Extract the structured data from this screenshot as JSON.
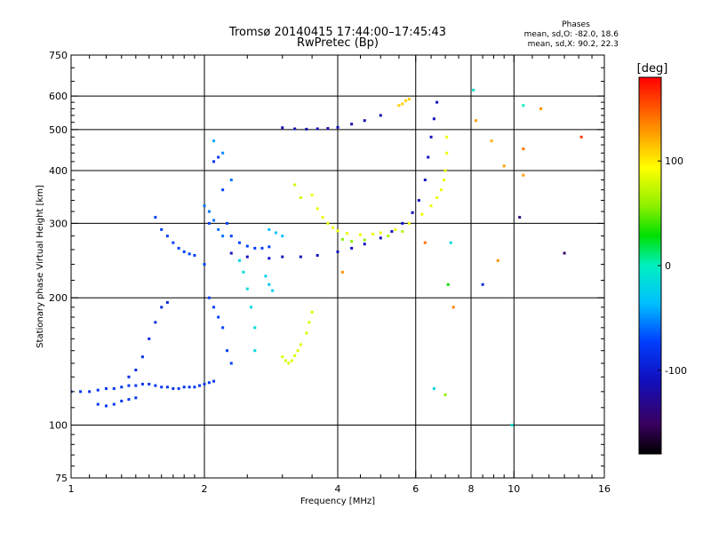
{
  "chart_data": {
    "type": "scatter",
    "title": "Tromsø 20140415 17:44:00–17:45:43",
    "subtitle": "RwPretec (Bp)",
    "xlabel": "Frequency [MHz]",
    "ylabel": "Stationary phase Virtual Height [km]",
    "x_scale": "log",
    "y_scale": "log",
    "xlim": [
      1,
      16
    ],
    "ylim": [
      75,
      750
    ],
    "x_ticks": [
      1,
      2,
      4,
      6,
      8,
      10,
      16
    ],
    "x_tick_labels": [
      "1",
      "2",
      "4",
      "6",
      "8",
      "10",
      "16"
    ],
    "x_minor_ticks": [
      1.1,
      1.2,
      1.3,
      1.4,
      1.5,
      1.6,
      1.7,
      1.8,
      1.9,
      2.5,
      3,
      3.5,
      4.5,
      5,
      5.5,
      6.5,
      7,
      7.5,
      8.5,
      9,
      9.5,
      11,
      12,
      13,
      14,
      15
    ],
    "y_ticks": [
      75,
      100,
      200,
      300,
      400,
      500,
      600,
      750
    ],
    "y_tick_labels": [
      "75",
      "100",
      "200",
      "300",
      "400",
      "500",
      "600",
      "750"
    ],
    "y_minor_ticks": [
      80,
      85,
      90,
      95,
      110,
      120,
      130,
      140,
      150,
      160,
      170,
      180,
      190,
      220,
      240,
      260,
      280,
      320,
      340,
      360,
      380,
      420,
      440,
      460,
      480,
      520,
      540,
      560,
      580,
      650,
      700
    ],
    "grid_x": [
      2,
      4,
      6,
      8,
      10
    ],
    "grid_y": [
      100,
      200,
      300,
      400,
      500,
      600
    ],
    "legend": {
      "title": "Phases",
      "lines": [
        "mean, sd,O: -82.0, 18.6",
        "mean, sd,X:  90.2, 22.3"
      ],
      "placement": "top-right"
    },
    "colorbar": {
      "label": "[deg]",
      "range": [
        -180,
        180
      ],
      "ticks": [
        100,
        0,
        -100
      ],
      "tick_labels": [
        "100",
        "0",
        "-100"
      ]
    },
    "series": [
      {
        "points": [
          [
            1.0,
            120,
            -95
          ],
          [
            1.05,
            120,
            -95
          ],
          [
            1.1,
            120,
            -95
          ],
          [
            1.15,
            121,
            -95
          ],
          [
            1.2,
            122,
            -95
          ],
          [
            1.25,
            122,
            -95
          ],
          [
            1.3,
            123,
            -95
          ],
          [
            1.35,
            124,
            -95
          ],
          [
            1.4,
            124,
            -95
          ],
          [
            1.45,
            125,
            -95
          ],
          [
            1.5,
            125,
            -95
          ],
          [
            1.55,
            124,
            -95
          ],
          [
            1.6,
            123,
            -95
          ],
          [
            1.65,
            123,
            -95
          ],
          [
            1.7,
            122,
            -95
          ],
          [
            1.75,
            122,
            -95
          ],
          [
            1.8,
            123,
            -95
          ],
          [
            1.85,
            123,
            -95
          ],
          [
            1.9,
            123,
            -95
          ],
          [
            1.95,
            124,
            -95
          ],
          [
            2.0,
            125,
            -95
          ],
          [
            2.05,
            126,
            -95
          ],
          [
            2.1,
            127,
            -95
          ],
          [
            1.15,
            112,
            -95
          ],
          [
            1.2,
            111,
            -95
          ],
          [
            1.25,
            112,
            -95
          ],
          [
            1.3,
            114,
            -95
          ],
          [
            1.35,
            115,
            -95
          ],
          [
            1.4,
            116,
            -95
          ],
          [
            1.35,
            130,
            -100
          ],
          [
            1.4,
            135,
            -100
          ],
          [
            1.45,
            145,
            -100
          ],
          [
            1.5,
            160,
            -100
          ],
          [
            1.55,
            175,
            -100
          ],
          [
            1.6,
            190,
            -100
          ],
          [
            1.65,
            195,
            -100
          ],
          [
            1.55,
            310,
            -90
          ],
          [
            1.6,
            290,
            -90
          ],
          [
            1.65,
            280,
            -90
          ],
          [
            1.7,
            270,
            -90
          ],
          [
            1.75,
            262,
            -90
          ],
          [
            1.8,
            257,
            -90
          ],
          [
            1.85,
            254,
            -90
          ],
          [
            1.9,
            252,
            -90
          ],
          [
            2.0,
            240,
            -90
          ],
          [
            2.05,
            300,
            -90
          ],
          [
            2.1,
            420,
            -95
          ],
          [
            2.15,
            430,
            -95
          ],
          [
            2.2,
            360,
            -90
          ],
          [
            2.25,
            300,
            -90
          ],
          [
            2.3,
            280,
            -90
          ],
          [
            2.4,
            270,
            -90
          ],
          [
            2.5,
            265,
            -90
          ],
          [
            2.6,
            262,
            -90
          ],
          [
            2.7,
            262,
            -90
          ],
          [
            2.8,
            264,
            -90
          ],
          [
            2.05,
            200,
            -90
          ],
          [
            2.1,
            190,
            -90
          ],
          [
            2.15,
            180,
            -90
          ],
          [
            2.2,
            170,
            -90
          ],
          [
            2.25,
            150,
            -90
          ],
          [
            2.3,
            140,
            -90
          ],
          [
            2.3,
            255,
            -115
          ],
          [
            2.5,
            250,
            -115
          ],
          [
            2.8,
            248,
            -115
          ],
          [
            3.0,
            250,
            -115
          ],
          [
            3.3,
            250,
            -115
          ],
          [
            3.6,
            252,
            -115
          ],
          [
            4.0,
            257,
            -115
          ],
          [
            4.3,
            262,
            -115
          ],
          [
            4.6,
            268,
            -115
          ],
          [
            5.0,
            277,
            -115
          ],
          [
            5.3,
            287,
            -115
          ],
          [
            5.6,
            300,
            -115
          ],
          [
            5.9,
            318,
            -115
          ],
          [
            6.1,
            340,
            -115
          ],
          [
            6.3,
            380,
            -115
          ],
          [
            6.4,
            430,
            -115
          ],
          [
            6.5,
            480,
            -115
          ],
          [
            6.6,
            530,
            -115
          ],
          [
            6.7,
            580,
            -115
          ],
          [
            3.0,
            505,
            -120
          ],
          [
            3.2,
            502,
            -120
          ],
          [
            3.4,
            501,
            -120
          ],
          [
            3.6,
            502,
            -120
          ],
          [
            3.8,
            503,
            -120
          ],
          [
            4.0,
            506,
            -120
          ],
          [
            4.3,
            515,
            -120
          ],
          [
            4.6,
            525,
            -120
          ],
          [
            5.0,
            540,
            -120
          ],
          [
            2.4,
            245,
            -20
          ],
          [
            2.45,
            230,
            -20
          ],
          [
            2.5,
            210,
            -20
          ],
          [
            2.55,
            190,
            -20
          ],
          [
            2.6,
            170,
            -20
          ],
          [
            2.6,
            150,
            -20
          ],
          [
            2.0,
            330,
            -70
          ],
          [
            2.05,
            320,
            -70
          ],
          [
            2.1,
            305,
            -70
          ],
          [
            2.15,
            290,
            -70
          ],
          [
            2.2,
            280,
            -70
          ],
          [
            2.1,
            470,
            -50
          ],
          [
            2.2,
            440,
            -60
          ],
          [
            2.3,
            380,
            -70
          ],
          [
            2.8,
            290,
            -40
          ],
          [
            2.9,
            285,
            -40
          ],
          [
            3.0,
            280,
            -40
          ],
          [
            2.75,
            225,
            -30
          ],
          [
            2.8,
            215,
            -30
          ],
          [
            2.85,
            208,
            -30
          ]
        ]
      },
      {
        "points": [
          [
            3.0,
            145,
            85
          ],
          [
            3.05,
            142,
            85
          ],
          [
            3.1,
            140,
            85
          ],
          [
            3.15,
            142,
            85
          ],
          [
            3.2,
            146,
            85
          ],
          [
            3.25,
            150,
            85
          ],
          [
            3.3,
            155,
            85
          ],
          [
            3.4,
            165,
            85
          ],
          [
            3.45,
            175,
            85
          ],
          [
            3.5,
            185,
            85
          ],
          [
            3.5,
            350,
            90
          ],
          [
            3.6,
            325,
            90
          ],
          [
            3.7,
            310,
            90
          ],
          [
            3.8,
            300,
            90
          ],
          [
            3.9,
            293,
            90
          ],
          [
            4.0,
            288,
            90
          ],
          [
            4.2,
            284,
            90
          ],
          [
            4.5,
            282,
            90
          ],
          [
            4.8,
            283,
            90
          ],
          [
            5.0,
            285,
            90
          ],
          [
            5.4,
            290,
            90
          ],
          [
            5.8,
            300,
            90
          ],
          [
            6.2,
            315,
            90
          ],
          [
            6.5,
            330,
            90
          ],
          [
            6.7,
            345,
            90
          ],
          [
            6.85,
            360,
            90
          ],
          [
            6.95,
            380,
            90
          ],
          [
            7.0,
            400,
            90
          ],
          [
            7.05,
            440,
            90
          ],
          [
            7.05,
            480,
            90
          ],
          [
            5.5,
            570,
            110
          ],
          [
            5.6,
            575,
            110
          ],
          [
            5.7,
            585,
            110
          ],
          [
            5.8,
            590,
            110
          ],
          [
            3.2,
            370,
            80
          ],
          [
            3.3,
            345,
            80
          ],
          [
            4.1,
            275,
            60
          ],
          [
            4.3,
            272,
            60
          ],
          [
            4.6,
            274,
            60
          ],
          [
            5.2,
            280,
            70
          ],
          [
            5.6,
            287,
            70
          ]
        ]
      },
      {
        "points": [
          [
            6.3,
            270,
            140
          ],
          [
            7.3,
            190,
            135
          ],
          [
            8.2,
            525,
            125
          ],
          [
            8.9,
            470,
            120
          ],
          [
            9.5,
            410,
            125
          ],
          [
            10.5,
            390,
            125
          ],
          [
            10.5,
            450,
            140
          ],
          [
            11.5,
            560,
            130
          ],
          [
            13.0,
            255,
            -150
          ],
          [
            14.2,
            480,
            160
          ],
          [
            4.1,
            230,
            130
          ],
          [
            8.1,
            620,
            -10
          ],
          [
            7.2,
            270,
            -20
          ],
          [
            6.6,
            122,
            -20
          ],
          [
            7.0,
            118,
            60
          ],
          [
            7.1,
            215,
            30
          ],
          [
            8.5,
            215,
            -100
          ],
          [
            9.9,
            100,
            -10
          ],
          [
            10.3,
            310,
            -140
          ],
          [
            10.5,
            570,
            0
          ],
          [
            9.2,
            245,
            130
          ]
        ]
      }
    ]
  }
}
